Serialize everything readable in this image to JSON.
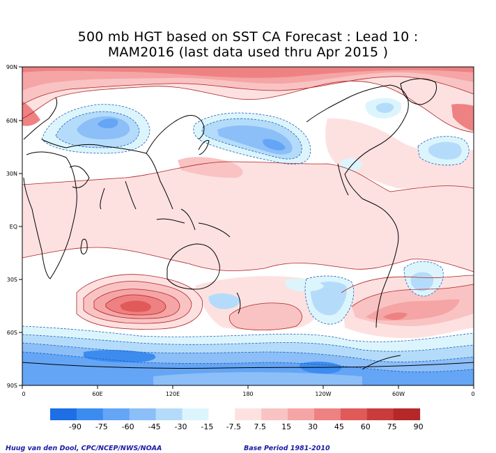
{
  "title": {
    "line1": "500 mb HGT based on SST CA Forecast : Lead 10 :",
    "line2": "MAM2016 (last data used thru Apr 2015 )"
  },
  "axes": {
    "lat_labels": [
      "90N",
      "60N",
      "30N",
      "EQ",
      "30S",
      "60S",
      "90S"
    ],
    "lon_labels": [
      "0",
      "60E",
      "120E",
      "180",
      "120W",
      "60W",
      "0"
    ]
  },
  "colorbar": {
    "tick_labels": [
      "-90",
      "-75",
      "-60",
      "-45",
      "-30",
      "-15",
      "-7.5",
      "7.5",
      "15",
      "30",
      "45",
      "60",
      "75",
      "90"
    ],
    "colors": [
      "#1e6ee6",
      "#3c8cf0",
      "#64a5f5",
      "#8cbef8",
      "#b4dcfa",
      "#dcf5fd",
      "#ffffff",
      "#fde1e1",
      "#f9c3c3",
      "#f5a5a5",
      "#ee8282",
      "#e15a5a",
      "#c83c3c",
      "#b42828"
    ]
  },
  "footer": {
    "credit": "Huug van den Dool, CPC/NCEP/NWS/NOAA",
    "base_period": "Base Period 1981-2010"
  }
}
